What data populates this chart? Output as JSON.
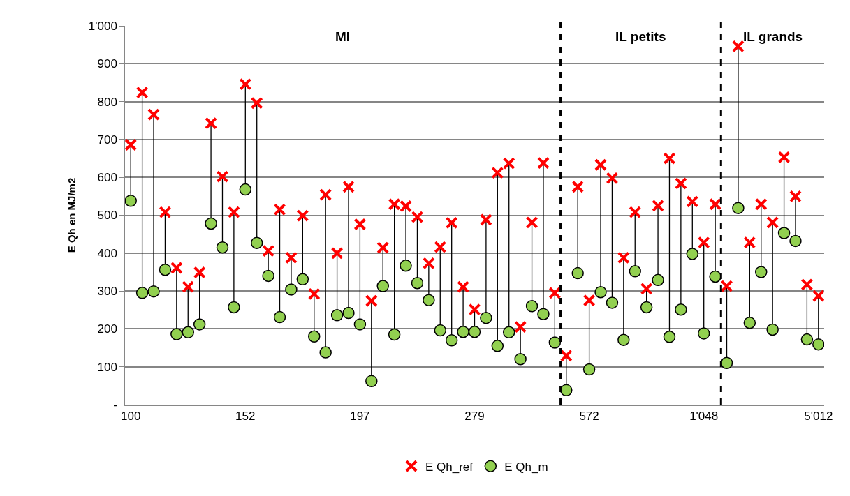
{
  "chart_data": {
    "type": "scatter",
    "ylabel": "E Qh en MJ/m2",
    "categories": [
      "100",
      null,
      null,
      null,
      null,
      null,
      null,
      null,
      null,
      null,
      "152",
      null,
      null,
      null,
      null,
      null,
      null,
      null,
      null,
      null,
      "197",
      null,
      null,
      null,
      null,
      null,
      null,
      null,
      null,
      null,
      "279",
      null,
      null,
      null,
      null,
      null,
      null,
      null,
      null,
      null,
      "572",
      null,
      null,
      null,
      null,
      null,
      null,
      null,
      null,
      null,
      "1'048",
      null,
      null,
      null,
      null,
      null,
      null,
      null,
      null,
      null,
      "5'012"
    ],
    "ylim": [
      0,
      1000
    ],
    "yticks": [
      {
        "value": 0,
        "label": "-"
      },
      100,
      200,
      300,
      400,
      500,
      600,
      700,
      800,
      900,
      {
        "value": 1000,
        "label": "1'000"
      }
    ],
    "series": [
      {
        "name": "E Qh_ref",
        "color": "#ff0000",
        "marker": "cross",
        "values": [
          686,
          824,
          766,
          508,
          361,
          311,
          349,
          743,
          602,
          508,
          846,
          796,
          406,
          515,
          388,
          499,
          292,
          554,
          400,
          575,
          476,
          274,
          414,
          529,
          524,
          495,
          373,
          416,
          480,
          311,
          251,
          488,
          612,
          637,
          205,
          481,
          638,
          295,
          129,
          575,
          275,
          633,
          598,
          388,
          508,
          306,
          525,
          650,
          584,
          536,
          428,
          529,
          313,
          946,
          428,
          529,
          481,
          653,
          550,
          317,
          287
        ]
      },
      {
        "name": "E Qh_m",
        "color": "#92d050",
        "marker": "circle",
        "values": [
          538,
          295,
          299,
          356,
          186,
          191,
          212,
          478,
          415,
          257,
          568,
          427,
          340,
          231,
          304,
          331,
          180,
          138,
          236,
          242,
          212,
          62,
          313,
          185,
          367,
          321,
          276,
          196,
          170,
          192,
          192,
          229,
          155,
          191,
          120,
          260,
          239,
          164,
          38,
          347,
          93,
          297,
          269,
          171,
          352,
          257,
          329,
          179,
          251,
          398,
          188,
          338,
          110,
          519,
          216,
          350,
          198,
          453,
          432,
          172,
          159
        ]
      }
    ],
    "annotations": [
      "MI",
      "IL petits",
      "IL grands"
    ],
    "grid": "y",
    "legend": "bottom"
  }
}
